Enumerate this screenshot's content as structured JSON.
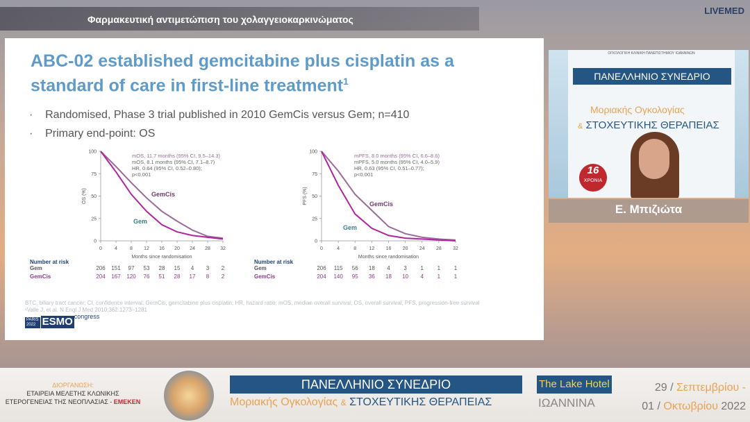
{
  "header": {
    "title": "Φαρμακευτική αντιμετώπιση του χολαγγειοκαρκινώματος",
    "brand": "LIVEMED"
  },
  "slide": {
    "title": "ABC-02 established gemcitabine plus cisplatin as a standard of care in first-line treatment",
    "title_ref": "1",
    "bullets": [
      "Randomised, Phase 3 trial published in 2010 GemCis versus Gem; n=410",
      "Primary end-point: OS"
    ],
    "footnotes": [
      "BTC, biliary tract cancer; CI, confidence interval; GemCis, gemcitabine plus cisplatin; HR, hazard ratio; mOS, median overall survival; OS, overall survival; PFS, progression-free survival",
      "¹Valle J, et al. N Engl J Med 2010;362:1273–1281"
    ],
    "logo": {
      "city": "PARIS",
      "year": "2022",
      "name": "ESMO",
      "suffix": "congress"
    }
  },
  "chart_data": [
    {
      "type": "line",
      "y_label": "OS (%)",
      "x_label": "Months since randomisation",
      "xlim": [
        0,
        32
      ],
      "ylim": [
        0,
        100
      ],
      "xticks": [
        0,
        4,
        8,
        12,
        16,
        20,
        24,
        28,
        32
      ],
      "yticks": [
        0,
        25,
        50,
        75,
        100
      ],
      "x": [
        0,
        4,
        8,
        12,
        16,
        20,
        24,
        28,
        32
      ],
      "series": [
        {
          "name": "GemCis",
          "color": "#9a6a9a",
          "values": [
            100,
            83,
            65,
            48,
            33,
            22,
            12,
            5,
            3
          ]
        },
        {
          "name": "Gem",
          "color": "#b0249f",
          "values": [
            100,
            77,
            52,
            33,
            18,
            10,
            6,
            4,
            2
          ]
        }
      ],
      "annotations": [
        "mOS, 11.7 months (95% CI, 9.5–14.3)",
        "mOS, 8.1 months (95% CI, 7.1–8.7)",
        "HR, 0.64 (95% CI, 0.52–0.80);",
        "p<0.001"
      ],
      "risk_table": {
        "title": "Number at risk",
        "rows": [
          {
            "name": "Gem",
            "values": [
              "206",
              "151",
              "97",
              "53",
              "28",
              "15",
              "4",
              "3",
              "2"
            ]
          },
          {
            "name": "GemCis",
            "values": [
              "204",
              "167",
              "120",
              "76",
              "51",
              "28",
              "17",
              "8",
              "2"
            ]
          }
        ]
      }
    },
    {
      "type": "line",
      "y_label": "PFS (%)",
      "x_label": "Months since randomisation",
      "xlim": [
        0,
        32
      ],
      "ylim": [
        0,
        100
      ],
      "xticks": [
        0,
        4,
        8,
        12,
        16,
        20,
        24,
        28,
        32
      ],
      "yticks": [
        0,
        25,
        50,
        75,
        100
      ],
      "x": [
        0,
        4,
        8,
        12,
        16,
        20,
        24,
        28,
        32
      ],
      "series": [
        {
          "name": "GemCis",
          "color": "#9a6a9a",
          "values": [
            100,
            78,
            52,
            34,
            16,
            8,
            4,
            2,
            1
          ]
        },
        {
          "name": "Gem",
          "color": "#b0249f",
          "values": [
            100,
            62,
            30,
            14,
            6,
            3,
            2,
            1,
            0
          ]
        }
      ],
      "annotations": [
        "mPFS, 8.0 months (95% CI, 6.6–8.6)",
        "mPFS, 5.0 months (95% CI, 4.0–5.9)",
        "HR, 0.63 (95% CI, 0.51–0.77);",
        "p<0.001"
      ],
      "risk_table": {
        "title": "Number at risk",
        "rows": [
          {
            "name": "Gem",
            "values": [
              "206",
              "115",
              "56",
              "18",
              "4",
              "3",
              "1",
              "1",
              "1"
            ]
          },
          {
            "name": "GemCis",
            "values": [
              "204",
              "140",
              "95",
              "36",
              "18",
              "10",
              "4",
              "1",
              "1"
            ]
          }
        ]
      }
    }
  ],
  "speaker": {
    "name": "Ε. Μπιζιώτα",
    "backdrop": {
      "org": "ΟΓΚΟΛΟΓΙΚΗ ΚΛΙΝΙΚΗ ΠΑΝΕΠΙΣΤΗΜΙΟΥ ΙΩΑΝΝΙΝΩΝ",
      "title": "ΠΑΝΕΛΛΗΝΙΟ ΣΥΝΕΔΡΙΟ",
      "line1": "Μοριακής Ογκολογίας",
      "amp": "&",
      "line2": "ΣΤΟΧΕΥΤΙΚΗΣ ΘΕΡΑΠΕΙΑΣ",
      "badge_num": "16",
      "badge_text": "ΧΡΟΝΙΑ"
    }
  },
  "footer": {
    "org_label": "ΔΙΟΡΓΑΝΩΣΗ:",
    "org_line1": "ΕΤΑΙΡΕΙΑ ΜΕΛΕΤΗΣ ΚΛΩΝΙΚΗΣ",
    "org_line2": "ΕΤΕΡΟΓΕΝΕΙΑΣ ΤΗΣ ΝΕΟΠΛΑΣΙΑΣ - ",
    "org_abbr": "ΕΜΕΚΕΝ",
    "title": "ΠΑΝΕΛΛΗΝΙΟ ΣΥΝΕΔΡΙΟ",
    "sub1": "Μοριακής Ογκολογίας",
    "amp": "&",
    "sub2": "ΣΤΟΧΕΥΤΙΚΗΣ ΘΕΡΑΠΕΙΑΣ",
    "venue": "The Lake Hotel",
    "city": "ΙΩΑΝΝΙΝΑ",
    "date1": {
      "day": "29",
      "sep": "/",
      "month": "Σεπτεμβρίου -"
    },
    "date2": {
      "day": "01",
      "sep": "/",
      "month": "Οκτωβρίου",
      "year": "2022"
    }
  }
}
